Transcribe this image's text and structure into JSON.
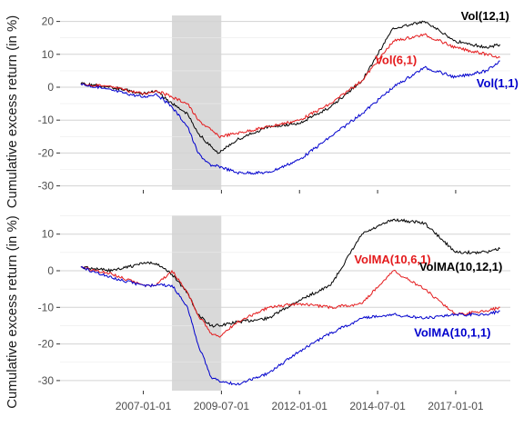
{
  "chart_data": [
    {
      "type": "line",
      "panel": "top",
      "ylabel": "Cumulative excess return (in %)",
      "ylim": [
        -32,
        22
      ],
      "yticks": [
        -30,
        -20,
        -10,
        0,
        10,
        20
      ],
      "xlim": [
        "2004-05-01",
        "2018-10-01"
      ],
      "recession": {
        "start": "2007-12-01",
        "end": "2009-06-30"
      },
      "series": [
        {
          "name": "Vol(12,1)",
          "color": "#000000",
          "x": [
            "2005-01",
            "2006-01",
            "2007-01",
            "2007-06",
            "2007-12",
            "2008-06",
            "2008-10",
            "2009-03",
            "2009-06",
            "2010-01",
            "2011-01",
            "2012-01",
            "2013-01",
            "2014-01",
            "2015-01",
            "2016-01",
            "2017-01",
            "2018-01",
            "2018-06"
          ],
          "y": [
            1,
            0,
            -2,
            -1,
            -5,
            -8,
            -14,
            -18,
            -20,
            -16,
            -12,
            -11,
            -6,
            2,
            18,
            20,
            14,
            12,
            13
          ]
        },
        {
          "name": "Vol(6,1)",
          "color": "#e41a1c",
          "x": [
            "2005-01",
            "2006-01",
            "2007-01",
            "2007-06",
            "2007-12",
            "2008-06",
            "2008-10",
            "2009-03",
            "2009-06",
            "2010-01",
            "2011-01",
            "2012-01",
            "2013-01",
            "2014-01",
            "2015-01",
            "2016-01",
            "2017-01",
            "2018-01",
            "2018-06"
          ],
          "y": [
            1,
            0,
            -2,
            -1,
            -3,
            -5,
            -10,
            -13,
            -15,
            -14,
            -12,
            -10,
            -5,
            2,
            14,
            16,
            12,
            10,
            9
          ]
        },
        {
          "name": "Vol(1,1)",
          "color": "#0000cd",
          "x": [
            "2005-01",
            "2006-01",
            "2007-01",
            "2007-06",
            "2007-12",
            "2008-06",
            "2008-10",
            "2009-03",
            "2009-06",
            "2010-01",
            "2011-01",
            "2012-01",
            "2013-01",
            "2014-01",
            "2015-01",
            "2016-01",
            "2017-01",
            "2018-01",
            "2018-06"
          ],
          "y": [
            1,
            -1,
            -3,
            -2,
            -6,
            -12,
            -20,
            -24,
            -24,
            -26,
            -26,
            -22,
            -15,
            -8,
            0,
            6,
            3,
            5,
            8
          ]
        }
      ],
      "annotations": [
        {
          "text": "Vol(12,1)",
          "color": "#000000",
          "x": "2017-03-01",
          "y": 20.5
        },
        {
          "text": "Vol(6,1)",
          "color": "#e41a1c",
          "x": "2014-06-01",
          "y": 7
        },
        {
          "text": "Vol(1,1)",
          "color": "#0000cd",
          "x": "2017-09-01",
          "y": 0
        }
      ]
    },
    {
      "type": "line",
      "panel": "bottom",
      "ylabel": "Cumulative excess return (in %)",
      "ylim": [
        -33,
        17
      ],
      "yticks": [
        -30,
        -20,
        -10,
        0,
        10
      ],
      "xlim": [
        "2004-05-01",
        "2018-10-01"
      ],
      "xticks": [
        "2007-01-01",
        "2009-07-01",
        "2012-01-01",
        "2014-07-01",
        "2017-01-01"
      ],
      "recession": {
        "start": "2007-12-01",
        "end": "2009-06-30"
      },
      "series": [
        {
          "name": "VolMA(10,12,1)",
          "color": "#000000",
          "x": [
            "2005-01",
            "2006-01",
            "2007-01",
            "2007-06",
            "2007-12",
            "2008-06",
            "2008-10",
            "2009-03",
            "2009-06",
            "2010-01",
            "2011-01",
            "2012-01",
            "2013-01",
            "2014-01",
            "2015-01",
            "2016-01",
            "2017-01",
            "2018-01",
            "2018-06"
          ],
          "y": [
            1,
            0,
            2,
            2,
            -1,
            -6,
            -12,
            -15,
            -15,
            -14,
            -13,
            -8,
            -4,
            10,
            14,
            13,
            5,
            5,
            6
          ]
        },
        {
          "name": "VolMA(10,6,1)",
          "color": "#e41a1c",
          "x": [
            "2005-01",
            "2006-01",
            "2007-01",
            "2007-06",
            "2007-12",
            "2008-06",
            "2008-10",
            "2009-03",
            "2009-06",
            "2010-01",
            "2011-01",
            "2012-01",
            "2013-01",
            "2014-01",
            "2015-01",
            "2016-01",
            "2017-01",
            "2018-01",
            "2018-06"
          ],
          "y": [
            1,
            -1,
            -4,
            -4,
            0,
            -6,
            -12,
            -17,
            -18,
            -14,
            -10,
            -9,
            -10,
            -9,
            0,
            -5,
            -12,
            -11,
            -10
          ]
        },
        {
          "name": "VolMA(10,1,1)",
          "color": "#0000cd",
          "x": [
            "2005-01",
            "2006-01",
            "2007-01",
            "2007-06",
            "2007-12",
            "2008-06",
            "2008-10",
            "2009-03",
            "2009-06",
            "2010-01",
            "2011-01",
            "2012-01",
            "2013-01",
            "2014-01",
            "2015-01",
            "2016-01",
            "2017-01",
            "2018-01",
            "2018-06"
          ],
          "y": [
            1,
            -2,
            -4,
            -4,
            -4,
            -10,
            -20,
            -29,
            -30,
            -31,
            -28,
            -22,
            -17,
            -13,
            -12,
            -13,
            -12,
            -12,
            -11
          ]
        }
      ],
      "annotations": [
        {
          "text": "VolMA(10,6,1)",
          "color": "#e41a1c",
          "x": "2013-10-01",
          "y": 2
        },
        {
          "text": "VolMA(10,12,1)",
          "color": "#000000",
          "x": "2015-11-01",
          "y": 0
        },
        {
          "text": "VolMA(10,1,1)",
          "color": "#0000cd",
          "x": "2015-09-01",
          "y": -18
        }
      ]
    }
  ]
}
